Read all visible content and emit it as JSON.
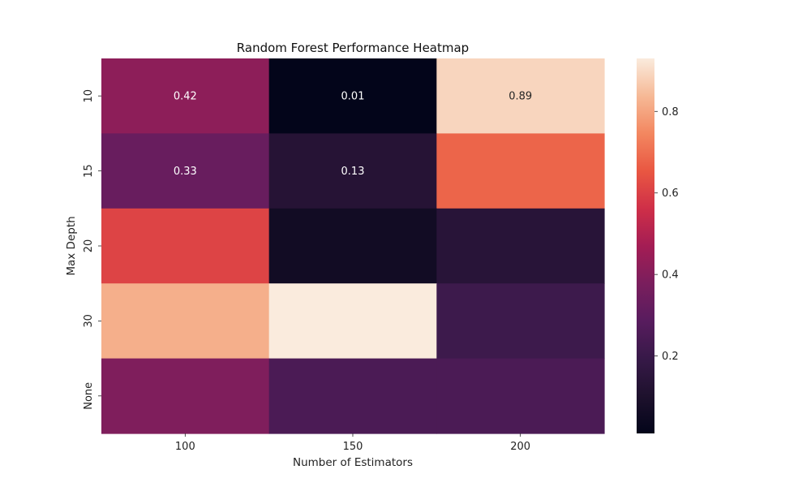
{
  "chart_data": {
    "type": "heatmap",
    "title": "Random Forest Performance Heatmap",
    "xlabel": "Number of Estimators",
    "ylabel": "Max Depth",
    "x_categories": [
      "100",
      "150",
      "200"
    ],
    "y_categories": [
      "10",
      "15",
      "20",
      "30",
      "None"
    ],
    "values": [
      [
        0.42,
        0.01,
        0.89
      ],
      [
        0.33,
        0.13,
        0.68
      ],
      [
        0.61,
        0.06,
        0.14
      ],
      [
        0.82,
        0.93,
        0.21
      ],
      [
        0.39,
        0.25,
        0.25
      ]
    ],
    "annotations": [
      [
        "0.42",
        "0.01",
        "0.89"
      ],
      [
        "0.33",
        "0.13",
        ""
      ],
      [
        "",
        "",
        ""
      ],
      [
        "",
        "",
        ""
      ],
      [
        "",
        "",
        ""
      ]
    ],
    "colormap": "rocket",
    "colorbar": {
      "range": [
        0.01,
        0.93
      ],
      "ticks": [
        0.2,
        0.4,
        0.6,
        0.8
      ],
      "tick_labels": [
        "0.2",
        "0.4",
        "0.6",
        "0.8"
      ]
    },
    "legend": "colorbar-right",
    "grid": false
  }
}
